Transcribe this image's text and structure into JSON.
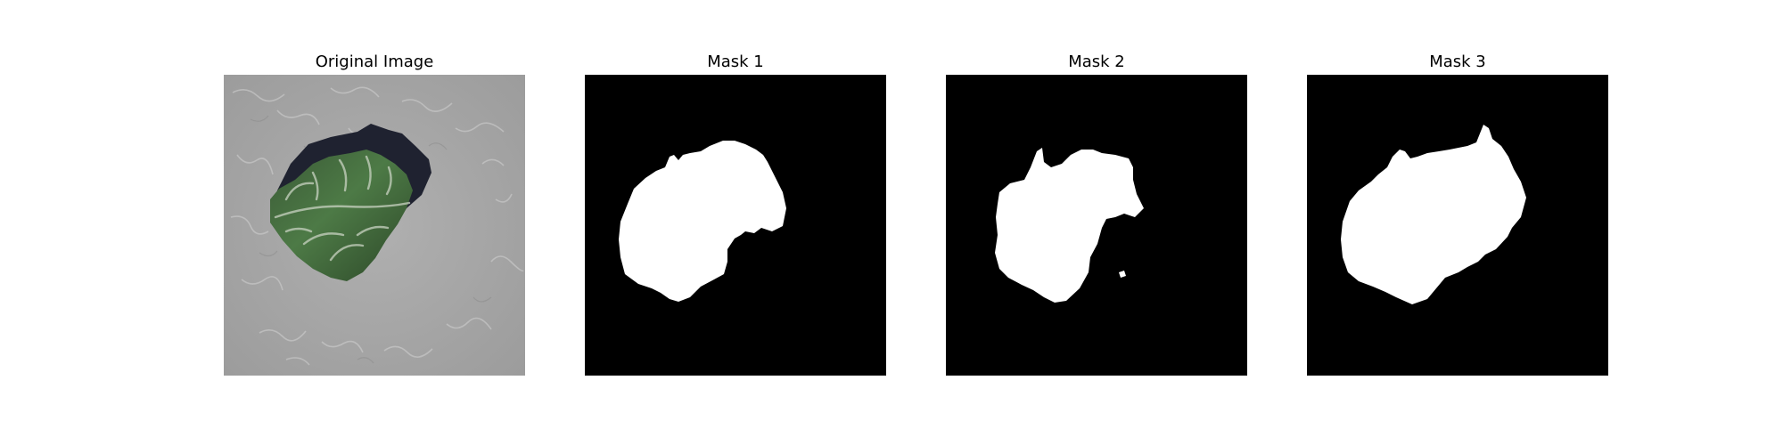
{
  "figure": {
    "panels": [
      {
        "title": "Original Image",
        "kind": "photo"
      },
      {
        "title": "Mask 1",
        "kind": "mask"
      },
      {
        "title": "Mask 2",
        "kind": "mask"
      },
      {
        "title": "Mask 3",
        "kind": "mask"
      }
    ],
    "colors": {
      "background": "#ffffff",
      "mask_background": "#000000",
      "mask_foreground": "#ffffff",
      "surface_gray": "#a9a9a9",
      "leaf_dark_green": "#2f4a2c",
      "leaf_green": "#4b7444",
      "shadow": "#20222e"
    }
  }
}
